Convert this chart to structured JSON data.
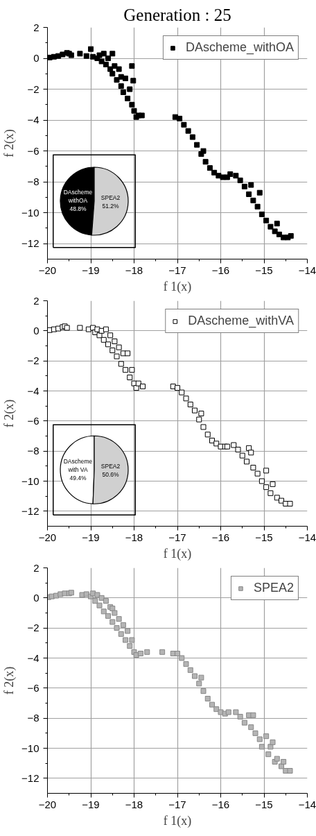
{
  "chart_data": [
    {
      "type": "scatter",
      "title": "Generation : 25",
      "xlabel": "f 1(x)",
      "ylabel": "f 2(x)",
      "xlim": [
        -20,
        -14
      ],
      "ylim": [
        -13,
        2
      ],
      "xticks": [
        -20,
        -19,
        -18,
        -17,
        -16,
        -15,
        -14
      ],
      "yticks": [
        -12,
        -10,
        -8,
        -6,
        -4,
        -2,
        0,
        2
      ],
      "grid": true,
      "legend": "top right",
      "marker": "square",
      "series": [
        {
          "name": "DAscheme_withOA",
          "color": "#000000",
          "x": [
            -19.95,
            -19.85,
            -19.75,
            -19.65,
            -19.55,
            -19.5,
            -19.45,
            -19.25,
            -19.1,
            -19.0,
            -18.95,
            -18.85,
            -18.8,
            -18.75,
            -18.7,
            -18.65,
            -18.6,
            -18.55,
            -18.5,
            -18.5,
            -18.45,
            -18.4,
            -18.35,
            -18.3,
            -18.3,
            -18.25,
            -18.2,
            -18.15,
            -18.1,
            -18.05,
            -18.05,
            -18.02,
            -18.0,
            -17.95,
            -17.9,
            -17.82,
            -17.05,
            -16.95,
            -16.85,
            -16.75,
            -16.65,
            -16.55,
            -16.45,
            -16.4,
            -16.35,
            -16.25,
            -16.15,
            -16.05,
            -15.95,
            -15.85,
            -15.78,
            -15.65,
            -15.55,
            -15.45,
            -15.35,
            -15.3,
            -15.25,
            -15.1,
            -15.15,
            -15.05,
            -14.95,
            -14.85,
            -14.75,
            -14.7,
            -14.65,
            -14.55,
            -14.45,
            -14.38
          ],
          "values": [
            0.05,
            0.1,
            0.15,
            0.25,
            0.35,
            0.3,
            0.2,
            0.3,
            0.15,
            0.6,
            0.1,
            0.0,
            0.2,
            -0.2,
            0.3,
            -0.4,
            0.0,
            -0.7,
            0.3,
            -1.0,
            -0.5,
            -1.4,
            -0.7,
            -1.8,
            -1.2,
            -2.2,
            -1.3,
            -2.6,
            -2.0,
            -3.0,
            -0.5,
            -1.45,
            -3.4,
            -3.8,
            -3.7,
            -3.7,
            -3.8,
            -3.9,
            -4.3,
            -4.7,
            -5.1,
            -5.6,
            -6.2,
            -6.0,
            -6.7,
            -7.1,
            -7.4,
            -7.6,
            -7.7,
            -7.7,
            -7.5,
            -7.6,
            -7.9,
            -8.3,
            -8.8,
            -8.2,
            -9.2,
            -8.7,
            -9.6,
            -10.1,
            -10.5,
            -10.9,
            -11.2,
            -10.7,
            -11.4,
            -11.6,
            -11.6,
            -11.5
          ]
        }
      ]
    },
    {
      "type": "pie",
      "categories": [
        "DAscheme withOA",
        "SPEA2"
      ],
      "values": [
        48.8,
        51.2
      ],
      "colors": [
        "#000000",
        "#d0d0d0"
      ],
      "value_labels": [
        "48.8%",
        "51.2%"
      ]
    },
    {
      "type": "scatter",
      "xlabel": "f 1(x)",
      "ylabel": "f 2(x)",
      "xlim": [
        -20,
        -14
      ],
      "ylim": [
        -13,
        2
      ],
      "xticks": [
        -20,
        -19,
        -18,
        -17,
        -16,
        -15,
        -14
      ],
      "yticks": [
        -12,
        -10,
        -8,
        -6,
        -4,
        -2,
        0,
        2
      ],
      "grid": true,
      "legend": "top right",
      "marker": "square",
      "series": [
        {
          "name": "DAscheme_withVA",
          "color": "#ffffff",
          "x": [
            -19.95,
            -19.85,
            -19.75,
            -19.65,
            -19.6,
            -19.55,
            -19.25,
            -19.05,
            -18.95,
            -18.9,
            -18.85,
            -18.8,
            -18.75,
            -18.7,
            -18.65,
            -18.6,
            -18.55,
            -18.5,
            -18.45,
            -18.4,
            -18.35,
            -18.3,
            -18.25,
            -18.2,
            -18.15,
            -18.1,
            -18.05,
            -18.0,
            -17.95,
            -17.9,
            -17.8,
            -17.1,
            -17.0,
            -16.9,
            -16.8,
            -16.7,
            -16.6,
            -16.5,
            -16.45,
            -16.4,
            -16.3,
            -16.2,
            -16.1,
            -16.0,
            -15.9,
            -15.85,
            -15.7,
            -15.6,
            -15.5,
            -15.4,
            -15.35,
            -15.3,
            -15.25,
            -15.15,
            -15.05,
            -14.95,
            -14.95,
            -14.85,
            -14.8,
            -14.7,
            -14.6,
            -14.5,
            -14.4
          ],
          "values": [
            0.05,
            0.1,
            0.15,
            0.25,
            0.3,
            0.2,
            0.2,
            0.1,
            0.2,
            -0.1,
            0.1,
            -0.3,
            0.0,
            -0.6,
            0.1,
            -0.9,
            -0.3,
            -1.3,
            -0.7,
            -1.7,
            -1.1,
            -2.2,
            -1.5,
            -2.6,
            -1.5,
            -3.1,
            -2.6,
            -3.5,
            -3.8,
            -3.5,
            -3.7,
            -3.7,
            -3.8,
            -4.1,
            -4.5,
            -4.9,
            -5.3,
            -5.9,
            -5.5,
            -6.4,
            -6.9,
            -7.3,
            -7.5,
            -7.7,
            -7.7,
            -7.7,
            -7.6,
            -7.9,
            -8.3,
            -8.7,
            -7.8,
            -8.1,
            -9.1,
            -9.5,
            -10.0,
            -9.3,
            -10.4,
            -10.8,
            -10.2,
            -11.1,
            -11.3,
            -11.5,
            -11.5
          ]
        }
      ]
    },
    {
      "type": "pie",
      "categories": [
        "DAscheme with VA",
        "SPEA2"
      ],
      "values": [
        49.4,
        50.6
      ],
      "colors": [
        "#ffffff",
        "#d0d0d0"
      ],
      "value_labels": [
        "49.4%",
        "50.6%"
      ]
    },
    {
      "type": "scatter",
      "xlabel": "f 1(x)",
      "ylabel": "f 2(x)",
      "xlim": [
        -20,
        -14
      ],
      "ylim": [
        -13,
        2
      ],
      "xticks": [
        -20,
        -19,
        -18,
        -17,
        -16,
        -15,
        -14
      ],
      "yticks": [
        -12,
        -10,
        -8,
        -6,
        -4,
        -2,
        0,
        2
      ],
      "grid": true,
      "legend": "top right",
      "marker": "square",
      "series": [
        {
          "name": "SPEA2",
          "color": "#b4b4b4",
          "x": [
            -19.98,
            -19.9,
            -19.8,
            -19.7,
            -19.6,
            -19.5,
            -19.45,
            -19.2,
            -19.1,
            -19.0,
            -18.95,
            -18.9,
            -18.85,
            -18.8,
            -18.75,
            -18.7,
            -18.65,
            -18.6,
            -18.55,
            -18.5,
            -18.5,
            -18.45,
            -18.4,
            -18.35,
            -18.3,
            -18.25,
            -18.2,
            -18.15,
            -18.1,
            -18.05,
            -18.0,
            -17.95,
            -17.85,
            -17.7,
            -17.35,
            -17.1,
            -17.0,
            -16.9,
            -16.8,
            -16.7,
            -16.6,
            -16.5,
            -16.45,
            -16.4,
            -16.3,
            -16.2,
            -16.1,
            -16.0,
            -15.9,
            -15.82,
            -15.65,
            -15.55,
            -15.45,
            -15.35,
            -15.3,
            -15.25,
            -15.2,
            -15.1,
            -15.05,
            -14.95,
            -14.9,
            -14.85,
            -14.8,
            -14.75,
            -14.7,
            -14.6,
            -14.55,
            -14.5,
            -14.4
          ],
          "values": [
            0.05,
            0.1,
            0.15,
            0.25,
            0.3,
            0.3,
            0.35,
            0.2,
            0.25,
            0.1,
            0.3,
            -0.2,
            0.2,
            -0.5,
            0.0,
            -0.9,
            -0.2,
            -1.2,
            -0.6,
            -1.6,
            -0.7,
            -1.0,
            -2.0,
            -1.4,
            -2.4,
            -1.8,
            -2.8,
            -2.2,
            -3.2,
            -2.8,
            -3.6,
            -3.8,
            -3.7,
            -3.6,
            -3.6,
            -3.7,
            -3.7,
            -4.0,
            -4.4,
            -4.8,
            -5.2,
            -5.7,
            -5.3,
            -6.2,
            -6.7,
            -7.1,
            -7.4,
            -7.6,
            -7.7,
            -7.6,
            -7.6,
            -7.9,
            -8.3,
            -7.8,
            -8.6,
            -7.8,
            -9.0,
            -9.4,
            -9.9,
            -9.2,
            -10.4,
            -9.9,
            -9.6,
            -10.9,
            -10.7,
            -11.2,
            -10.9,
            -11.5,
            -11.5
          ]
        }
      ]
    }
  ]
}
